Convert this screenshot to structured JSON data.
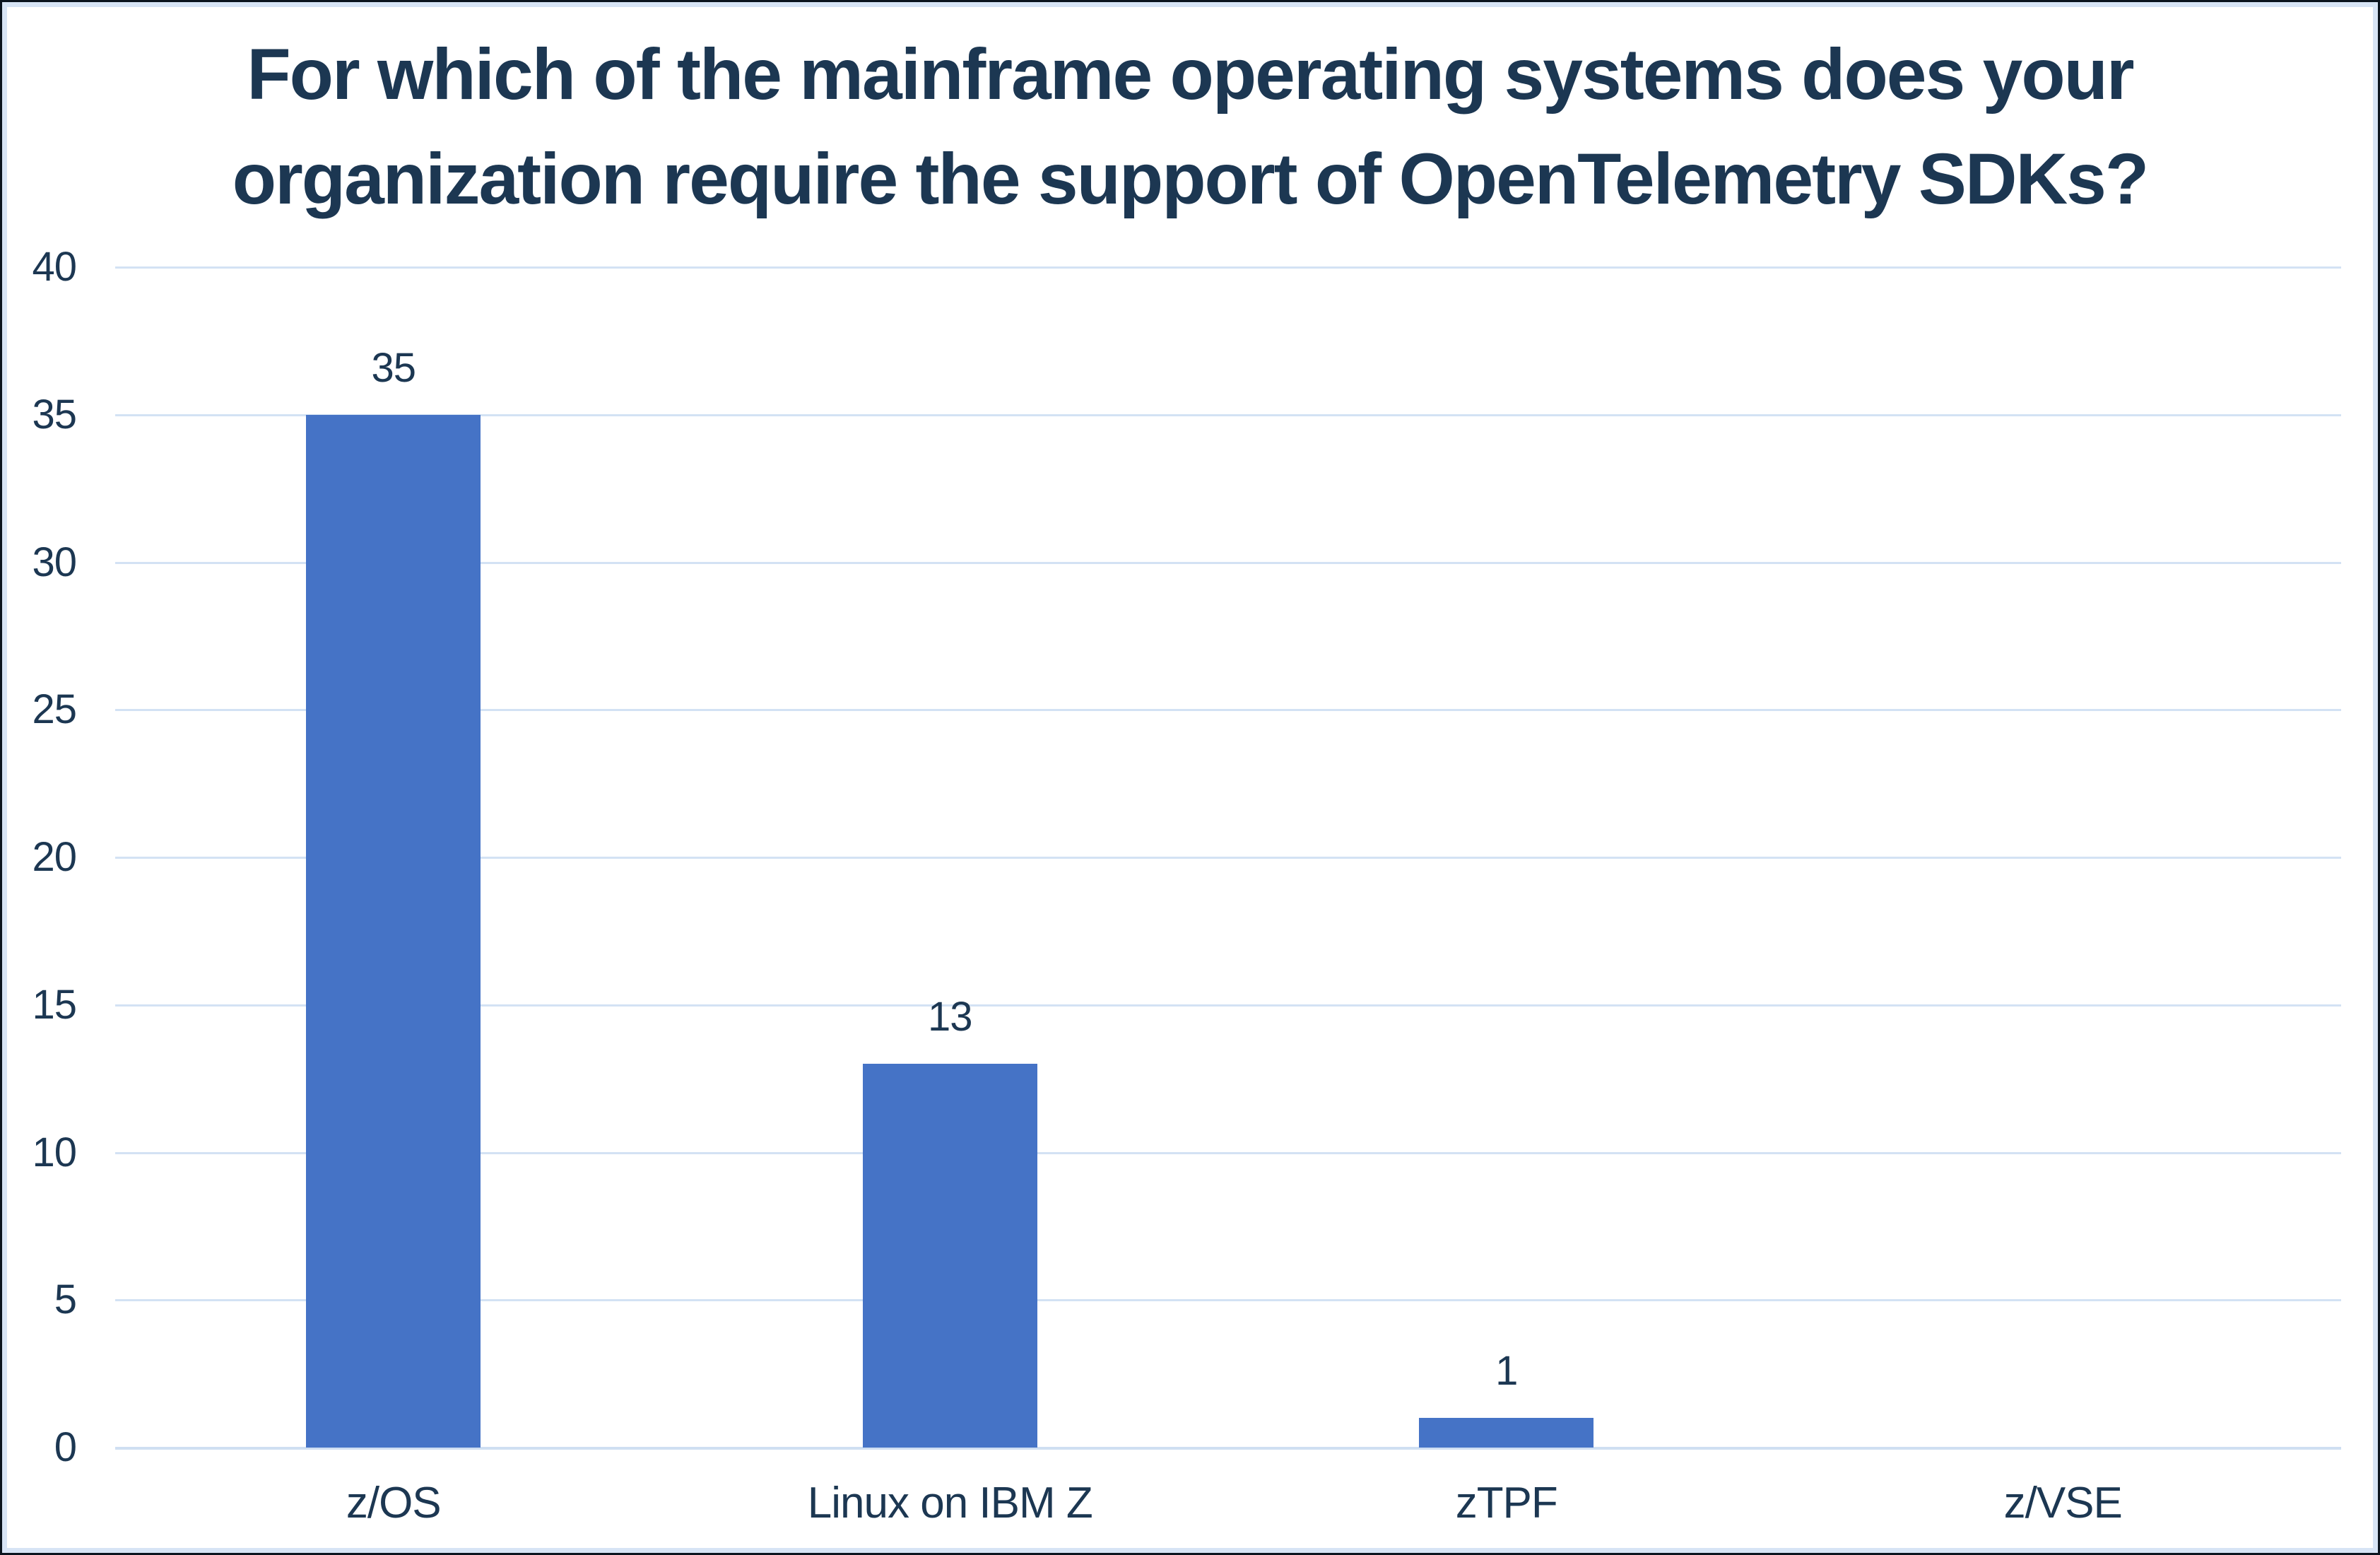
{
  "title_lines": [
    "For which of the mainframe operating systems does your",
    "organization require the support of OpenTelemetry SDKs?"
  ],
  "chart_data": {
    "type": "bar",
    "title": "For which of the mainframe operating systems does your organization require the support of OpenTelemetry SDKs?",
    "categories": [
      "z/OS",
      "Linux on IBM Z",
      "zTPF",
      "z/VSE"
    ],
    "values": [
      35,
      13,
      1,
      0
    ],
    "data_labels": [
      "35",
      "13",
      "1",
      ""
    ],
    "yticks": [
      0,
      5,
      10,
      15,
      20,
      25,
      30,
      35,
      40
    ],
    "ylim": [
      0,
      40
    ],
    "xlabel": "",
    "ylabel": "",
    "grid": true,
    "legend": false,
    "bar_color": "#4573c6",
    "gridline_color": "#d3e2f4",
    "text_color": "#1c3752",
    "background_color": "#ffffff",
    "frame_border_color": "#d7e4f5"
  }
}
